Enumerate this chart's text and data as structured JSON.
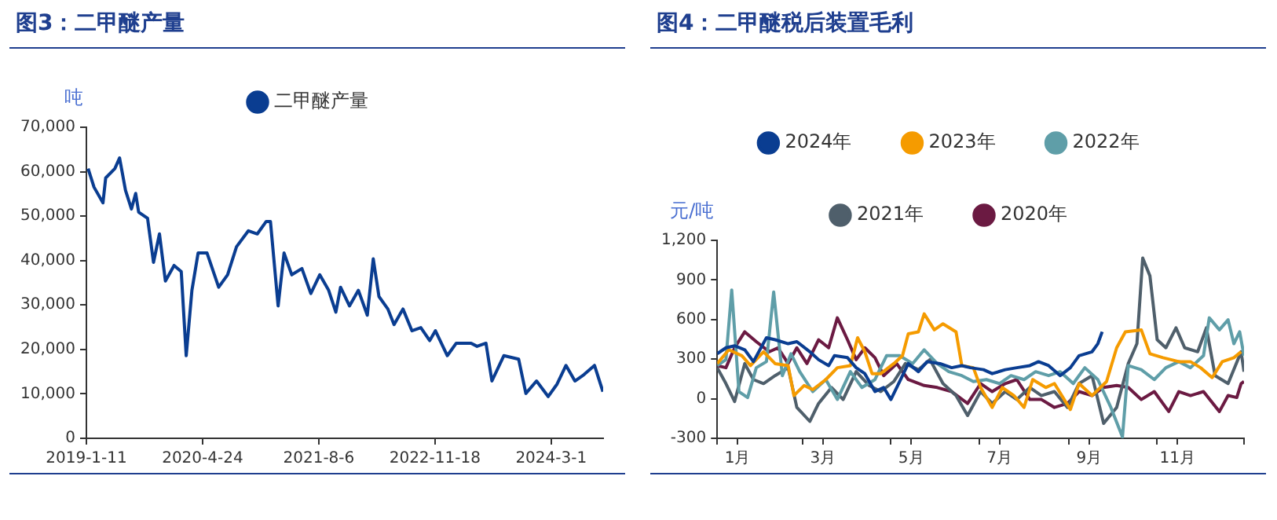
{
  "chart_data": [
    {
      "type": "line",
      "title": "图3：二甲醚产量",
      "ylabel": "吨",
      "legend": "top",
      "x": [
        "2019-01-18",
        "2019-02-11",
        "2019-03-19",
        "2019-03-30",
        "2019-05-06",
        "2019-05-25",
        "2019-06-18",
        "2019-07-12",
        "2019-07-29",
        "2019-08-10",
        "2019-09-15",
        "2019-10-09",
        "2019-11-02",
        "2019-11-26",
        "2019-12-31",
        "2020-01-29",
        "2020-02-18",
        "2020-03-12",
        "2020-04-06",
        "2020-05-12",
        "2020-06-28",
        "2020-08-03",
        "2020-09-08",
        "2020-10-26",
        "2020-12-01",
        "2021-01-06",
        "2021-01-23",
        "2021-02-23",
        "2021-03-19",
        "2021-04-19",
        "2021-05-30",
        "2021-07-05",
        "2021-08-10",
        "2021-09-15",
        "2021-10-14",
        "2021-11-02",
        "2021-12-08",
        "2022-01-13",
        "2022-02-18",
        "2022-03-14",
        "2022-04-06",
        "2022-05-12",
        "2022-06-06",
        "2022-07-12",
        "2022-08-17",
        "2022-09-22",
        "2022-10-28",
        "2022-11-20",
        "2023-01-07",
        "2023-02-12",
        "2023-04-13",
        "2023-05-07",
        "2023-06-12",
        "2023-07-06",
        "2023-08-23",
        "2023-10-22",
        "2023-11-20",
        "2024-01-02",
        "2024-02-18",
        "2024-03-25",
        "2024-04-30",
        "2024-06-05",
        "2024-07-11",
        "2024-08-23",
        "2024-09-26"
      ],
      "series": [
        {
          "name": "二甲醚产量",
          "color": "#0a3d91",
          "values": [
            60700,
            56500,
            53000,
            58600,
            60700,
            63100,
            55800,
            51600,
            55100,
            50900,
            49500,
            39600,
            46000,
            35400,
            38900,
            37500,
            18600,
            33300,
            41700,
            41700,
            34000,
            36800,
            43100,
            46700,
            46000,
            48800,
            48800,
            29800,
            41700,
            36800,
            38200,
            32600,
            36800,
            33300,
            28400,
            34000,
            29800,
            33300,
            27700,
            40400,
            31900,
            29100,
            25600,
            29100,
            24200,
            24900,
            22000,
            24200,
            18600,
            21400,
            21400,
            20700,
            21400,
            12900,
            18600,
            17800,
            10100,
            12900,
            9400,
            12200,
            16400,
            12900,
            14300,
            16400,
            10500
          ]
        }
      ],
      "xlim": [
        "2019-01-11",
        "2024-09-27"
      ],
      "xticks": [
        {
          "value": "2019-01-11",
          "label": "2019-1-11"
        },
        {
          "value": "2020-04-24",
          "label": "2020-4-24"
        },
        {
          "value": "2021-08-06",
          "label": "2021-8-6"
        },
        {
          "value": "2022-11-18",
          "label": "2022-11-18"
        },
        {
          "value": "2024-03-01",
          "label": "2024-3-1"
        }
      ],
      "ylim": [
        0,
        70000
      ],
      "yticks": [
        0,
        {
          "value": 10000,
          "label": "10,000"
        },
        {
          "value": 20000,
          "label": "20,000"
        },
        {
          "value": 30000,
          "label": "30,000"
        },
        {
          "value": 40000,
          "label": "40,000"
        },
        {
          "value": 50000,
          "label": "50,000"
        },
        {
          "value": 60000,
          "label": "60,000"
        },
        {
          "value": 70000,
          "label": "70,000"
        }
      ]
    },
    {
      "type": "line",
      "title": "图4：二甲醚税后装置毛利",
      "ylabel": "元/吨",
      "legend": "top",
      "series": [
        {
          "name": "2024年",
          "color": "#0a3d91",
          "x": [
            "--01-01",
            "--01-07",
            "--01-13",
            "--01-20",
            "--01-26",
            "--02-04",
            "--02-10",
            "--02-19",
            "--02-25",
            "--03-06",
            "--03-12",
            "--03-19",
            "--03-23",
            "--04-01",
            "--04-07",
            "--04-13",
            "--04-20",
            "--04-26",
            "--05-01",
            "--05-07",
            "--05-13",
            "--05-20",
            "--05-26",
            "--06-04",
            "--06-12",
            "--06-19",
            "--06-25",
            "--07-04",
            "--07-10",
            "--07-19",
            "--07-27",
            "--08-05",
            "--08-11",
            "--08-18",
            "--08-26",
            "--09-02",
            "--09-08",
            "--09-17",
            "--09-21",
            "--09-24"
          ],
          "values": [
            341,
            386,
            401,
            371,
            281,
            462,
            447,
            417,
            432,
            356,
            296,
            251,
            326,
            311,
            235,
            190,
            54,
            85,
            -6,
            130,
            266,
            205,
            281,
            266,
            235,
            251,
            235,
            220,
            190,
            220,
            235,
            251,
            281,
            251,
            175,
            235,
            326,
            356,
            417,
            507
          ]
        },
        {
          "name": "2023年",
          "color": "#f59b00",
          "x": [
            "--01-01",
            "--01-09",
            "--01-18",
            "--01-24",
            "--02-02",
            "--02-10",
            "--02-19",
            "--02-23",
            "--03-02",
            "--03-08",
            "--03-17",
            "--03-25",
            "--04-03",
            "--04-08",
            "--04-13",
            "--04-18",
            "--04-24",
            "--05-03",
            "--05-09",
            "--05-13",
            "--05-20",
            "--05-24",
            "--05-31",
            "--06-06",
            "--06-15",
            "--06-19",
            "--06-27",
            "--07-02",
            "--07-10",
            "--07-17",
            "--07-25",
            "--08-01",
            "--08-07",
            "--08-16",
            "--08-22",
            "--09-02",
            "--09-08",
            "--09-17",
            "--09-27",
            "--10-04",
            "--10-10",
            "--10-21",
            "--10-27",
            "--11-05",
            "--11-16",
            "--11-24",
            "--12-01",
            "--12-09",
            "--12-16",
            "--12-24",
            "--12-29"
          ],
          "values": [
            266,
            371,
            326,
            251,
            356,
            266,
            251,
            24,
            100,
            69,
            145,
            235,
            251,
            462,
            356,
            190,
            190,
            266,
            326,
            492,
            507,
            643,
            522,
            568,
            507,
            251,
            235,
            85,
            -66,
            85,
            24,
            -66,
            145,
            85,
            115,
            -82,
            115,
            24,
            130,
            386,
            507,
            522,
            341,
            311,
            281,
            281,
            235,
            160,
            281,
            311,
            356
          ]
        },
        {
          "name": "2022年",
          "color": "#5f9ea8",
          "x": [
            "--01-01",
            "--01-07",
            "--01-11",
            "--01-16",
            "--01-22",
            "--01-28",
            "--02-04",
            "--02-09",
            "--02-15",
            "--02-21",
            "--02-27",
            "--03-08",
            "--03-17",
            "--03-25",
            "--04-03",
            "--04-11",
            "--04-20",
            "--04-28",
            "--05-07",
            "--05-16",
            "--05-24",
            "--06-02",
            "--06-10",
            "--06-19",
            "--06-27",
            "--07-06",
            "--07-15",
            "--07-23",
            "--08-01",
            "--08-09",
            "--08-18",
            "--08-26",
            "--09-04",
            "--09-12",
            "--09-21",
            "--09-30",
            "--10-08",
            "--10-12",
            "--10-21",
            "--10-30",
            "--11-07",
            "--11-16",
            "--11-24",
            "--12-03",
            "--12-07",
            "--12-14",
            "--12-20",
            "--12-24",
            "--12-28",
            "--12-31"
          ],
          "values": [
            251,
            296,
            824,
            54,
            9,
            235,
            281,
            809,
            175,
            341,
            205,
            54,
            145,
            -6,
            205,
            85,
            145,
            326,
            326,
            266,
            371,
            266,
            205,
            175,
            130,
            145,
            115,
            175,
            145,
            205,
            175,
            205,
            115,
            235,
            145,
            -66,
            -290,
            251,
            220,
            145,
            235,
            281,
            235,
            326,
            613,
            522,
            598,
            417,
            507,
            326
          ]
        },
        {
          "name": "2021年",
          "color": "#4f5f6b",
          "x": [
            "--01-01",
            "--01-07",
            "--01-13",
            "--01-20",
            "--01-26",
            "--02-02",
            "--02-10",
            "--02-19",
            "--02-25",
            "--03-06",
            "--03-12",
            "--03-21",
            "--03-29",
            "--04-07",
            "--04-16",
            "--04-24",
            "--05-03",
            "--05-11",
            "--05-20",
            "--05-28",
            "--06-06",
            "--06-15",
            "--06-23",
            "--07-02",
            "--07-10",
            "--07-19",
            "--07-27",
            "--08-05",
            "--08-13",
            "--08-22",
            "--08-31",
            "--09-08",
            "--09-17",
            "--09-25",
            "--10-04",
            "--10-12",
            "--10-18",
            "--10-22",
            "--10-27",
            "--11-01",
            "--11-07",
            "--11-14",
            "--11-20",
            "--11-29",
            "--12-05",
            "--12-11",
            "--12-20",
            "--12-29",
            "--12-31"
          ],
          "values": [
            235,
            115,
            -21,
            266,
            145,
            115,
            175,
            235,
            -66,
            -172,
            -36,
            85,
            -6,
            205,
            100,
            54,
            130,
            266,
            220,
            296,
            115,
            24,
            -127,
            54,
            -36,
            54,
            -6,
            85,
            24,
            54,
            -66,
            115,
            175,
            -187,
            -66,
            266,
            417,
            1066,
            930,
            447,
            386,
            537,
            386,
            356,
            537,
            175,
            115,
            356,
            205
          ]
        },
        {
          "name": "2020年",
          "color": "#6b1a42",
          "x": [
            "--01-01",
            "--01-07",
            "--01-13",
            "--01-20",
            "--01-28",
            "--02-06",
            "--02-12",
            "--02-19",
            "--02-25",
            "--03-04",
            "--03-12",
            "--03-19",
            "--03-25",
            "--04-01",
            "--04-07",
            "--04-13",
            "--04-20",
            "--04-26",
            "--05-05",
            "--05-13",
            "--05-24",
            "--06-02",
            "--06-12",
            "--06-23",
            "--07-02",
            "--07-10",
            "--07-19",
            "--07-27",
            "--08-05",
            "--08-13",
            "--08-22",
            "--08-31",
            "--09-08",
            "--09-17",
            "--09-25",
            "--10-04",
            "--10-12",
            "--10-21",
            "--10-30",
            "--11-09",
            "--11-16",
            "--11-24",
            "--12-03",
            "--12-14",
            "--12-20",
            "--12-26",
            "--12-29",
            "--12-31"
          ],
          "values": [
            251,
            235,
            386,
            507,
            432,
            356,
            386,
            266,
            386,
            266,
            447,
            386,
            613,
            447,
            296,
            386,
            311,
            175,
            266,
            145,
            100,
            85,
            54,
            -36,
            115,
            54,
            115,
            145,
            -6,
            -6,
            -66,
            -36,
            54,
            24,
            85,
            100,
            85,
            -6,
            54,
            -97,
            54,
            24,
            54,
            -97,
            24,
            9,
            115,
            130
          ]
        }
      ],
      "xlim": [
        "--01-01",
        "--12-31"
      ],
      "xticks": [
        {
          "value": "--01-01",
          "label": null
        },
        {
          "value": "--01-15",
          "label": "1月"
        },
        {
          "value": "--03-01",
          "label": null
        },
        {
          "value": "--03-15",
          "label": "3月"
        },
        {
          "value": "--05-01",
          "label": null
        },
        {
          "value": "--05-15",
          "label": "5月"
        },
        {
          "value": "--07-01",
          "label": null
        },
        {
          "value": "--07-15",
          "label": "7月"
        },
        {
          "value": "--09-01",
          "label": null
        },
        {
          "value": "--09-15",
          "label": "9月"
        },
        {
          "value": "--11-01",
          "label": null
        },
        {
          "value": "--11-15",
          "label": "11月"
        },
        {
          "value": "--12-31",
          "label": null
        }
      ],
      "ylim": [
        -300,
        1200
      ],
      "yticks": [
        -300,
        0,
        300,
        600,
        900,
        {
          "value": 1200,
          "label": "1,200"
        }
      ]
    }
  ]
}
